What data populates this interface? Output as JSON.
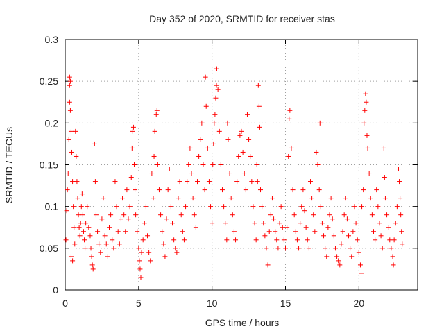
{
  "chart_data": {
    "type": "scatter",
    "title": "Day 352 of 2020, SRMTID for receiver stas",
    "xlabel": "GPS time / hours",
    "ylabel": "SRMTID / TECUs",
    "xlim": [
      0,
      24
    ],
    "ylim": [
      0,
      0.3
    ],
    "x_ticks": [
      0,
      5,
      10,
      15,
      20
    ],
    "x_tick_labels": [
      "0",
      "5",
      "10",
      "15",
      "20"
    ],
    "y_ticks": [
      0,
      0.05,
      0.1,
      0.15,
      0.2,
      0.25,
      0.3
    ],
    "y_tick_labels": [
      "0",
      "0.05",
      "0.1",
      "0.15",
      "0.2",
      "0.25",
      "0.3"
    ],
    "grid": true,
    "marker": "plus",
    "series": [
      {
        "name": "SRMTID",
        "color": "#ff0000",
        "points": [
          [
            0.05,
            0.06
          ],
          [
            0.1,
            0.095
          ],
          [
            0.15,
            0.12
          ],
          [
            0.2,
            0.14
          ],
          [
            0.25,
            0.18
          ],
          [
            0.3,
            0.245
          ],
          [
            0.3,
            0.255
          ],
          [
            0.35,
            0.25
          ],
          [
            0.3,
            0.225
          ],
          [
            0.35,
            0.215
          ],
          [
            0.4,
            0.19
          ],
          [
            0.45,
            0.165
          ],
          [
            0.5,
            0.13
          ],
          [
            0.55,
            0.1
          ],
          [
            0.6,
            0.075
          ],
          [
            0.65,
            0.055
          ],
          [
            0.4,
            0.04
          ],
          [
            0.5,
            0.035
          ],
          [
            0.7,
            0.19
          ],
          [
            0.75,
            0.16
          ],
          [
            0.8,
            0.13
          ],
          [
            0.85,
            0.11
          ],
          [
            0.9,
            0.09
          ],
          [
            0.95,
            0.075
          ],
          [
            1.0,
            0.065
          ],
          [
            1.05,
            0.08
          ],
          [
            1.1,
            0.1
          ],
          [
            1.15,
            0.115
          ],
          [
            1.2,
            0.09
          ],
          [
            1.25,
            0.07
          ],
          [
            1.3,
            0.06
          ],
          [
            1.35,
            0.05
          ],
          [
            1.4,
            0.08
          ],
          [
            1.5,
            0.1
          ],
          [
            1.6,
            0.075
          ],
          [
            1.7,
            0.065
          ],
          [
            1.75,
            0.05
          ],
          [
            1.8,
            0.04
          ],
          [
            1.85,
            0.03
          ],
          [
            1.9,
            0.025
          ],
          [
            2.0,
            0.175
          ],
          [
            2.05,
            0.13
          ],
          [
            2.1,
            0.09
          ],
          [
            2.2,
            0.07
          ],
          [
            2.3,
            0.055
          ],
          [
            2.4,
            0.045
          ],
          [
            2.5,
            0.085
          ],
          [
            2.6,
            0.11
          ],
          [
            2.7,
            0.065
          ],
          [
            2.8,
            0.055
          ],
          [
            2.9,
            0.04
          ],
          [
            3.0,
            0.075
          ],
          [
            3.1,
            0.09
          ],
          [
            3.2,
            0.06
          ],
          [
            3.3,
            0.05
          ],
          [
            3.4,
            0.13
          ],
          [
            3.5,
            0.1
          ],
          [
            3.6,
            0.07
          ],
          [
            3.7,
            0.055
          ],
          [
            3.8,
            0.085
          ],
          [
            3.9,
            0.11
          ],
          [
            4.0,
            0.09
          ],
          [
            4.1,
            0.07
          ],
          [
            4.2,
            0.12
          ],
          [
            4.3,
            0.085
          ],
          [
            4.4,
            0.1
          ],
          [
            4.5,
            0.135
          ],
          [
            4.55,
            0.17
          ],
          [
            4.6,
            0.19
          ],
          [
            4.65,
            0.195
          ],
          [
            4.7,
            0.15
          ],
          [
            4.75,
            0.12
          ],
          [
            4.8,
            0.09
          ],
          [
            4.9,
            0.07
          ],
          [
            5.0,
            0.05
          ],
          [
            5.05,
            0.035
          ],
          [
            5.1,
            0.025
          ],
          [
            5.15,
            0.015
          ],
          [
            5.2,
            0.045
          ],
          [
            5.3,
            0.06
          ],
          [
            5.4,
            0.08
          ],
          [
            5.5,
            0.1
          ],
          [
            5.6,
            0.065
          ],
          [
            5.7,
            0.045
          ],
          [
            5.8,
            0.035
          ],
          [
            5.9,
            0.14
          ],
          [
            6.0,
            0.11
          ],
          [
            6.05,
            0.16
          ],
          [
            6.1,
            0.19
          ],
          [
            6.2,
            0.21
          ],
          [
            6.25,
            0.215
          ],
          [
            6.3,
            0.15
          ],
          [
            6.4,
            0.12
          ],
          [
            6.5,
            0.09
          ],
          [
            6.6,
            0.07
          ],
          [
            6.7,
            0.055
          ],
          [
            6.8,
            0.04
          ],
          [
            6.9,
            0.085
          ],
          [
            7.0,
            0.12
          ],
          [
            7.1,
            0.145
          ],
          [
            7.2,
            0.1
          ],
          [
            7.3,
            0.08
          ],
          [
            7.4,
            0.06
          ],
          [
            7.5,
            0.05
          ],
          [
            7.6,
            0.045
          ],
          [
            7.7,
            0.11
          ],
          [
            7.8,
            0.13
          ],
          [
            7.9,
            0.09
          ],
          [
            8.0,
            0.07
          ],
          [
            8.1,
            0.06
          ],
          [
            8.2,
            0.1
          ],
          [
            8.3,
            0.13
          ],
          [
            8.4,
            0.15
          ],
          [
            8.5,
            0.17
          ],
          [
            8.6,
            0.14
          ],
          [
            8.7,
            0.11
          ],
          [
            8.8,
            0.09
          ],
          [
            8.9,
            0.075
          ],
          [
            9.0,
            0.13
          ],
          [
            9.1,
            0.16
          ],
          [
            9.2,
            0.18
          ],
          [
            9.3,
            0.2
          ],
          [
            9.4,
            0.15
          ],
          [
            9.5,
            0.12
          ],
          [
            9.55,
            0.255
          ],
          [
            9.6,
            0.22
          ],
          [
            9.7,
            0.17
          ],
          [
            9.8,
            0.13
          ],
          [
            9.9,
            0.1
          ],
          [
            10.0,
            0.08
          ],
          [
            10.05,
            0.15
          ],
          [
            10.1,
            0.175
          ],
          [
            10.15,
            0.2
          ],
          [
            10.2,
            0.21
          ],
          [
            10.25,
            0.23
          ],
          [
            10.3,
            0.245
          ],
          [
            10.32,
            0.265
          ],
          [
            10.4,
            0.24
          ],
          [
            10.5,
            0.19
          ],
          [
            10.6,
            0.15
          ],
          [
            10.7,
            0.12
          ],
          [
            10.8,
            0.1
          ],
          [
            10.9,
            0.08
          ],
          [
            11.0,
            0.06
          ],
          [
            11.05,
            0.2
          ],
          [
            11.1,
            0.18
          ],
          [
            11.2,
            0.14
          ],
          [
            11.3,
            0.11
          ],
          [
            11.4,
            0.09
          ],
          [
            11.5,
            0.07
          ],
          [
            11.6,
            0.06
          ],
          [
            11.7,
            0.13
          ],
          [
            11.8,
            0.16
          ],
          [
            11.9,
            0.185
          ],
          [
            12.0,
            0.19
          ],
          [
            12.1,
            0.165
          ],
          [
            12.2,
            0.14
          ],
          [
            12.3,
            0.12
          ],
          [
            12.4,
            0.21
          ],
          [
            12.5,
            0.18
          ],
          [
            12.6,
            0.16
          ],
          [
            12.7,
            0.13
          ],
          [
            12.8,
            0.1
          ],
          [
            12.9,
            0.08
          ],
          [
            13.0,
            0.06
          ],
          [
            13.05,
            0.15
          ],
          [
            13.1,
            0.13
          ],
          [
            13.15,
            0.245
          ],
          [
            13.2,
            0.22
          ],
          [
            13.25,
            0.195
          ],
          [
            13.3,
            0.12
          ],
          [
            13.4,
            0.1
          ],
          [
            13.5,
            0.08
          ],
          [
            13.6,
            0.065
          ],
          [
            13.7,
            0.05
          ],
          [
            13.8,
            0.03
          ],
          [
            13.9,
            0.07
          ],
          [
            14.0,
            0.09
          ],
          [
            14.1,
            0.11
          ],
          [
            14.2,
            0.085
          ],
          [
            14.3,
            0.07
          ],
          [
            14.4,
            0.06
          ],
          [
            14.5,
            0.05
          ],
          [
            14.6,
            0.08
          ],
          [
            14.7,
            0.1
          ],
          [
            14.8,
            0.075
          ],
          [
            14.9,
            0.06
          ],
          [
            15.0,
            0.05
          ],
          [
            15.1,
            0.075
          ],
          [
            15.2,
            0.16
          ],
          [
            15.25,
            0.205
          ],
          [
            15.3,
            0.215
          ],
          [
            15.4,
            0.17
          ],
          [
            15.5,
            0.12
          ],
          [
            15.6,
            0.09
          ],
          [
            15.7,
            0.07
          ],
          [
            15.8,
            0.06
          ],
          [
            15.9,
            0.05
          ],
          [
            16.0,
            0.08
          ],
          [
            16.1,
            0.1
          ],
          [
            16.2,
            0.12
          ],
          [
            16.3,
            0.095
          ],
          [
            16.4,
            0.075
          ],
          [
            16.5,
            0.06
          ],
          [
            16.6,
            0.05
          ],
          [
            16.7,
            0.13
          ],
          [
            16.8,
            0.11
          ],
          [
            16.9,
            0.09
          ],
          [
            17.0,
            0.07
          ],
          [
            17.1,
            0.165
          ],
          [
            17.2,
            0.15
          ],
          [
            17.3,
            0.12
          ],
          [
            17.35,
            0.2
          ],
          [
            17.4,
            0.1
          ],
          [
            17.5,
            0.08
          ],
          [
            17.6,
            0.065
          ],
          [
            17.7,
            0.05
          ],
          [
            17.8,
            0.04
          ],
          [
            17.9,
            0.075
          ],
          [
            18.0,
            0.09
          ],
          [
            18.1,
            0.11
          ],
          [
            18.2,
            0.085
          ],
          [
            18.3,
            0.065
          ],
          [
            18.4,
            0.05
          ],
          [
            18.5,
            0.04
          ],
          [
            18.6,
            0.035
          ],
          [
            18.7,
            0.03
          ],
          [
            18.8,
            0.055
          ],
          [
            18.9,
            0.07
          ],
          [
            19.0,
            0.09
          ],
          [
            19.1,
            0.11
          ],
          [
            19.2,
            0.085
          ],
          [
            19.3,
            0.065
          ],
          [
            19.4,
            0.05
          ],
          [
            19.5,
            0.04
          ],
          [
            19.6,
            0.07
          ],
          [
            19.7,
            0.1
          ],
          [
            19.8,
            0.08
          ],
          [
            19.9,
            0.06
          ],
          [
            20.0,
            0.045
          ],
          [
            20.1,
            0.03
          ],
          [
            20.15,
            0.02
          ],
          [
            20.2,
            0.1
          ],
          [
            20.3,
            0.12
          ],
          [
            20.35,
            0.2
          ],
          [
            20.4,
            0.215
          ],
          [
            20.45,
            0.235
          ],
          [
            20.5,
            0.225
          ],
          [
            20.55,
            0.185
          ],
          [
            20.6,
            0.17
          ],
          [
            20.7,
            0.14
          ],
          [
            20.8,
            0.11
          ],
          [
            20.9,
            0.09
          ],
          [
            21.0,
            0.07
          ],
          [
            21.1,
            0.06
          ],
          [
            21.2,
            0.12
          ],
          [
            21.3,
            0.1
          ],
          [
            21.4,
            0.08
          ],
          [
            21.5,
            0.065
          ],
          [
            21.6,
            0.05
          ],
          [
            21.7,
            0.17
          ],
          [
            21.75,
            0.135
          ],
          [
            21.8,
            0.11
          ],
          [
            21.9,
            0.09
          ],
          [
            22.0,
            0.075
          ],
          [
            22.1,
            0.06
          ],
          [
            22.2,
            0.05
          ],
          [
            22.3,
            0.04
          ],
          [
            22.35,
            0.03
          ],
          [
            22.4,
            0.06
          ],
          [
            22.5,
            0.08
          ],
          [
            22.6,
            0.1
          ],
          [
            22.7,
            0.145
          ],
          [
            22.75,
            0.13
          ],
          [
            22.8,
            0.11
          ],
          [
            22.85,
            0.09
          ],
          [
            22.9,
            0.07
          ],
          [
            22.95,
            0.055
          ]
        ]
      }
    ]
  }
}
